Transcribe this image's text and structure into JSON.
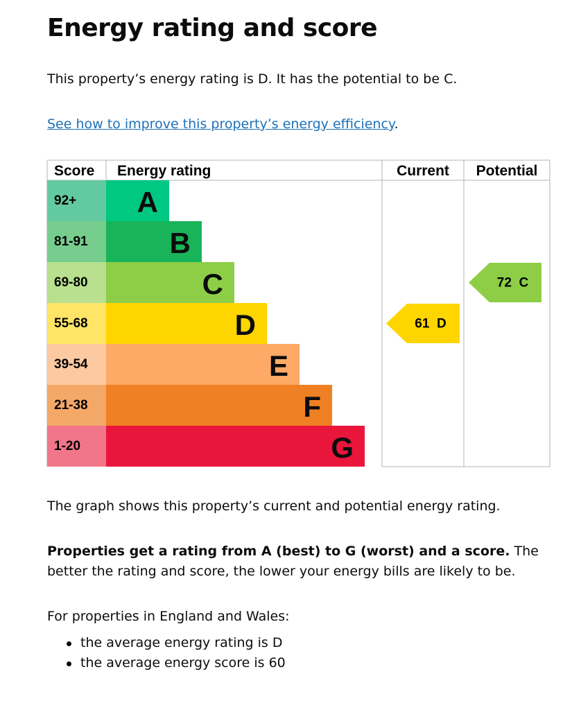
{
  "heading": "Energy rating and score",
  "intro": "This property’s energy rating is D. It has the potential to be C.",
  "link": {
    "text": "See how to improve this property’s energy efficiency",
    "suffix": "."
  },
  "table": {
    "headers": [
      "Score",
      "Energy rating",
      "Current",
      "Potential"
    ],
    "bands": [
      {
        "score": "92+",
        "letter": "A",
        "color": "#00c781",
        "score_color": "#63c9a0"
      },
      {
        "score": "81-91",
        "letter": "B",
        "color": "#19b459",
        "score_color": "#76cd8e"
      },
      {
        "score": "69-80",
        "letter": "C",
        "color": "#8dce46",
        "score_color": "#b8e08f"
      },
      {
        "score": "55-68",
        "letter": "D",
        "color": "#ffd500",
        "score_color": "#ffe566"
      },
      {
        "score": "39-54",
        "letter": "E",
        "color": "#fcaa65",
        "score_color": "#fdc9a0"
      },
      {
        "score": "21-38",
        "letter": "F",
        "color": "#ef8023",
        "score_color": "#f4a868"
      },
      {
        "score": "1-20",
        "letter": "G",
        "color": "#e9153b",
        "score_color": "#f27689"
      }
    ],
    "current": {
      "score": 61,
      "letter": "D"
    },
    "potential": {
      "score": 72,
      "letter": "C"
    }
  },
  "graph_note": "The graph shows this property’s current and potential energy rating.",
  "explanation": {
    "bold": "Properties get a rating from A (best) to G (worst) and a score.",
    "rest": "The better the rating and score, the lower your energy bills are likely to be."
  },
  "averages_intro": "For properties in England and Wales:",
  "bullets": [
    "the average energy rating is D",
    "the average energy score is 60"
  ]
}
